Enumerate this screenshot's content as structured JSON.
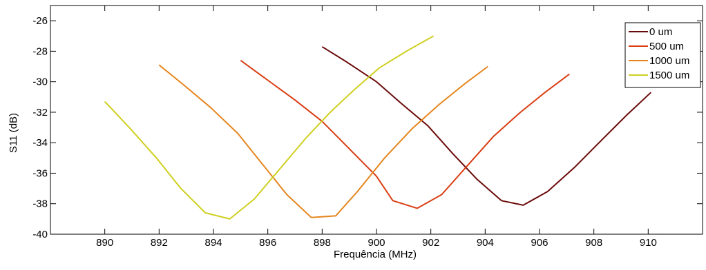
{
  "chart_data": {
    "type": "line",
    "title": "",
    "xlabel": "Frequência (MHz)",
    "ylabel": "S11 (dB)",
    "xlim": [
      888,
      912
    ],
    "ylim": [
      -40,
      -25
    ],
    "x_ticks": [
      890,
      892,
      894,
      896,
      898,
      900,
      902,
      904,
      906,
      908,
      910
    ],
    "y_ticks": [
      -40,
      -38,
      -36,
      -34,
      -32,
      -30,
      -28,
      -26
    ],
    "grid": false,
    "legend_position": "top-right",
    "series": [
      {
        "name": "0 um",
        "color": "#6b0a0a",
        "x": [
          898.0,
          898.9,
          900.0,
          900.9,
          901.9,
          902.8,
          903.7,
          904.6,
          905.4,
          906.3,
          907.3,
          908.3,
          909.2,
          910.1
        ],
        "y": [
          -27.7,
          -28.7,
          -30.0,
          -31.4,
          -32.9,
          -34.7,
          -36.4,
          -37.8,
          -38.1,
          -37.2,
          -35.6,
          -33.8,
          -32.2,
          -30.7
        ]
      },
      {
        "name": "500 um",
        "color": "#d93d12",
        "x": [
          895.0,
          896.0,
          897.0,
          898.0,
          899.0,
          900.0,
          900.6,
          901.5,
          902.4,
          903.3,
          904.3,
          905.3,
          906.2,
          907.1
        ],
        "y": [
          -28.6,
          -29.9,
          -31.2,
          -32.6,
          -34.4,
          -36.2,
          -37.8,
          -38.3,
          -37.4,
          -35.6,
          -33.6,
          -32.0,
          -30.7,
          -29.5
        ]
      },
      {
        "name": "1000 um",
        "color": "#e5851d",
        "x": [
          892.0,
          892.9,
          893.9,
          894.9,
          895.8,
          896.7,
          897.6,
          898.5,
          899.3,
          900.3,
          901.3,
          902.3,
          903.2,
          904.1
        ],
        "y": [
          -28.9,
          -30.2,
          -31.7,
          -33.4,
          -35.4,
          -37.4,
          -38.9,
          -38.8,
          -37.2,
          -35.0,
          -33.1,
          -31.5,
          -30.2,
          -29.0
        ]
      },
      {
        "name": "1500 um",
        "color": "#cfcf20",
        "x": [
          890.0,
          890.9,
          891.9,
          892.8,
          893.7,
          894.6,
          895.5,
          896.5,
          897.4,
          898.3,
          899.2,
          900.1,
          901.1,
          902.1
        ],
        "y": [
          -31.3,
          -33.0,
          -35.0,
          -37.0,
          -38.6,
          -39.0,
          -37.7,
          -35.6,
          -33.7,
          -32.0,
          -30.5,
          -29.1,
          -28.0,
          -27.0
        ]
      }
    ]
  }
}
